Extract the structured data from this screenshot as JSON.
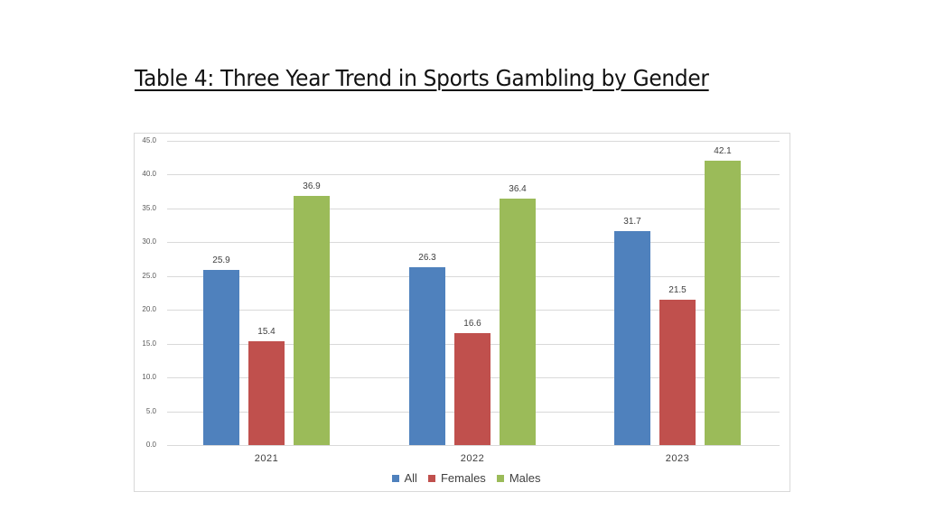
{
  "title": "Table 4:  Three Year Trend in Sports Gambling by Gender",
  "colors": {
    "All": "#4f81bd",
    "Females": "#c0504d",
    "Males": "#9bbb59"
  },
  "chart_data": {
    "type": "bar",
    "title": "Table 4:  Three Year Trend in Sports Gambling by Gender",
    "xlabel": "",
    "ylabel": "",
    "categories": [
      "2021",
      "2022",
      "2023"
    ],
    "series": [
      {
        "name": "All",
        "values": [
          25.9,
          26.3,
          31.7
        ]
      },
      {
        "name": "Females",
        "values": [
          15.4,
          16.6,
          21.5
        ]
      },
      {
        "name": "Males",
        "values": [
          36.9,
          36.4,
          42.1
        ]
      }
    ],
    "ylim": [
      0,
      45
    ],
    "yticks": [
      "0.0",
      "5.0",
      "10.0",
      "15.0",
      "20.0",
      "25.0",
      "30.0",
      "35.0",
      "40.0",
      "45.0"
    ],
    "grid": true,
    "legend_position": "bottom",
    "data_labels": true
  }
}
